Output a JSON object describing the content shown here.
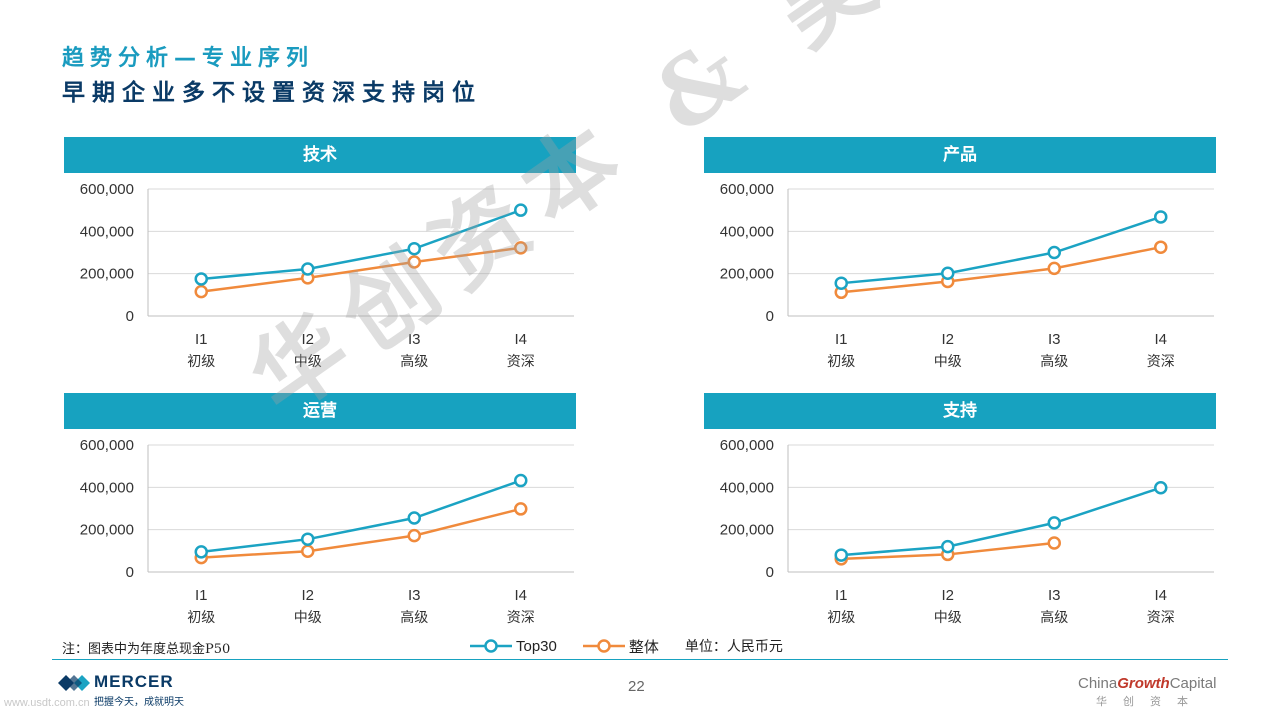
{
  "titles": {
    "line1": "趋势分析—专业序列",
    "line2": "早期企业多不设置资深支持岗位"
  },
  "colors": {
    "top30": "#1ba3c3",
    "overall": "#f08a3c",
    "header": "#17a2c0"
  },
  "chart_data": [
    {
      "type": "line",
      "title": "技术",
      "categories": [
        "I1",
        "I2",
        "I3",
        "I4"
      ],
      "category_sub": [
        "初级",
        "中级",
        "高级",
        "资深"
      ],
      "ylim": [
        0,
        600000
      ],
      "yticks": [
        "0",
        "200,000",
        "400,000",
        "600,000"
      ],
      "ytick_values": [
        0,
        200000,
        400000,
        600000
      ],
      "series": [
        {
          "name": "Top30",
          "values": [
            175000,
            222000,
            318000,
            500000
          ]
        },
        {
          "name": "整体",
          "values": [
            115000,
            180000,
            255000,
            322000
          ]
        }
      ]
    },
    {
      "type": "line",
      "title": "产品",
      "categories": [
        "I1",
        "I2",
        "I3",
        "I4"
      ],
      "category_sub": [
        "初级",
        "中级",
        "高级",
        "资深"
      ],
      "ylim": [
        0,
        600000
      ],
      "yticks": [
        "0",
        "200,000",
        "400,000",
        "600,000"
      ],
      "ytick_values": [
        0,
        200000,
        400000,
        600000
      ],
      "series": [
        {
          "name": "Top30",
          "values": [
            155000,
            202000,
            300000,
            468000
          ]
        },
        {
          "name": "整体",
          "values": [
            112000,
            163000,
            225000,
            325000
          ]
        }
      ]
    },
    {
      "type": "line",
      "title": "运营",
      "categories": [
        "I1",
        "I2",
        "I3",
        "I4"
      ],
      "category_sub": [
        "初级",
        "中级",
        "高级",
        "资深"
      ],
      "ylim": [
        0,
        600000
      ],
      "yticks": [
        "0",
        "200,000",
        "400,000",
        "600,000"
      ],
      "ytick_values": [
        0,
        200000,
        400000,
        600000
      ],
      "series": [
        {
          "name": "Top30",
          "values": [
            95000,
            155000,
            255000,
            432000
          ]
        },
        {
          "name": "整体",
          "values": [
            68000,
            98000,
            172000,
            298000
          ]
        }
      ]
    },
    {
      "type": "line",
      "title": "支持",
      "categories": [
        "I1",
        "I2",
        "I3",
        "I4"
      ],
      "category_sub": [
        "初级",
        "中级",
        "高级",
        "资深"
      ],
      "ylim": [
        0,
        600000
      ],
      "yticks": [
        "0",
        "200,000",
        "400,000",
        "600,000"
      ],
      "ytick_values": [
        0,
        200000,
        400000,
        600000
      ],
      "series": [
        {
          "name": "Top30",
          "values": [
            80000,
            120000,
            232000,
            398000
          ]
        },
        {
          "name": "整体",
          "values": [
            62000,
            83000,
            137000,
            null
          ]
        }
      ]
    }
  ],
  "footnote": "注：图表中为年度总现金P50",
  "legend": {
    "top30": "Top30",
    "overall": "整体",
    "unit": "单位：人民币元"
  },
  "footer": {
    "mercer_name": "MERCER",
    "mercer_slogan": "把握今天，成就明天",
    "page_number": "22",
    "cgc_prefix": "China",
    "cgc_bold": "Growth",
    "cgc_suffix": "Capital",
    "cgc_sub": "华创资本",
    "site": "www.usdt.com.cn"
  },
  "watermark": "华创资本 & 美世"
}
